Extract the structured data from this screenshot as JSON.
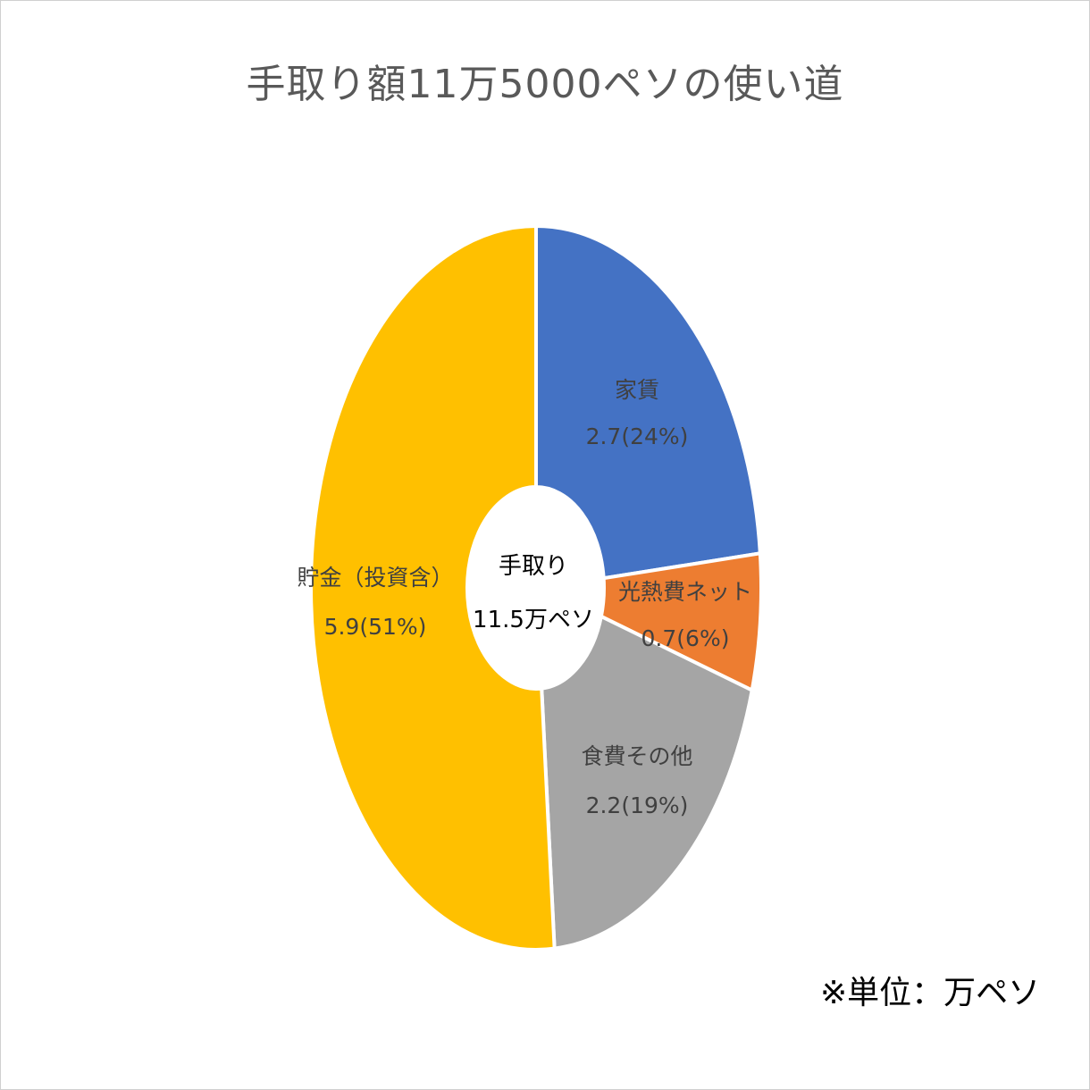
{
  "chart_data": {
    "type": "pie",
    "variant": "donut",
    "title": "手取り額11万5000ペソの使い道",
    "center_label": [
      "手取り",
      "11.5万ペソ"
    ],
    "unit_note": "※単位：万ペソ",
    "slices": [
      {
        "name": "家賃",
        "value": 2.7,
        "display": "2.7(24%)",
        "color": "#4472C4"
      },
      {
        "name": "光熱費ネット",
        "value": 0.7,
        "display": "0.7(6%)",
        "color": "#ED7D31"
      },
      {
        "name": "食費その他",
        "value": 2.2,
        "display": "2.2(19%)",
        "color": "#A5A5A5"
      },
      {
        "name": "貯金（投資含）",
        "value": 5.9,
        "display": "5.9(51%)",
        "color": "#FFC000"
      }
    ],
    "legend": "none"
  }
}
